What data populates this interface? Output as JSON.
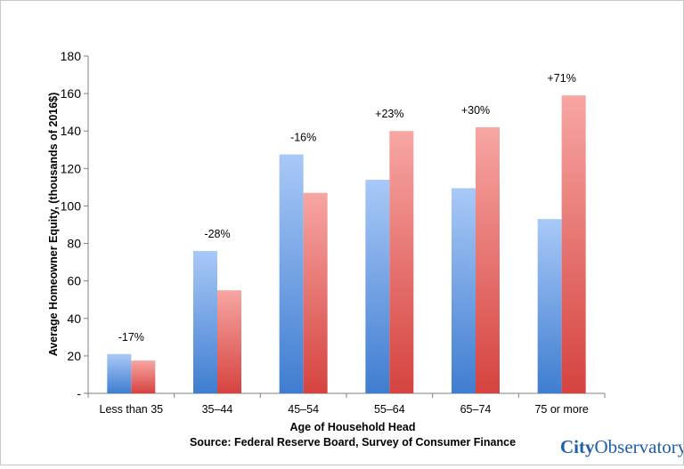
{
  "chart_data": {
    "type": "bar",
    "categories": [
      "Less than 35",
      "35–44",
      "45–54",
      "55–64",
      "65–74",
      "75 or more"
    ],
    "series": [
      {
        "values": [
          21,
          76,
          127.5,
          114,
          109.5,
          93
        ],
        "color": "#5b93d9"
      },
      {
        "values": [
          17.5,
          55,
          107,
          140,
          142,
          159
        ],
        "color": "#e96a66"
      }
    ],
    "annotations": [
      "-17%",
      "-28%",
      "-16%",
      "+23%",
      "+30%",
      "+71%"
    ],
    "ylabel": "Average Homeowner Equity,  (thousands of  2016$)",
    "xlabel": "Age of Household Head",
    "ylim": [
      0,
      180
    ],
    "yticks": [
      "-",
      "20",
      "40",
      "60",
      "80",
      "100",
      "120",
      "140",
      "160",
      "180"
    ],
    "grid": false
  },
  "source": "Source:  Federal Reserve Board, Survey of Consumer Finance",
  "logo": {
    "part1": "City",
    "part2": "Observatory"
  }
}
